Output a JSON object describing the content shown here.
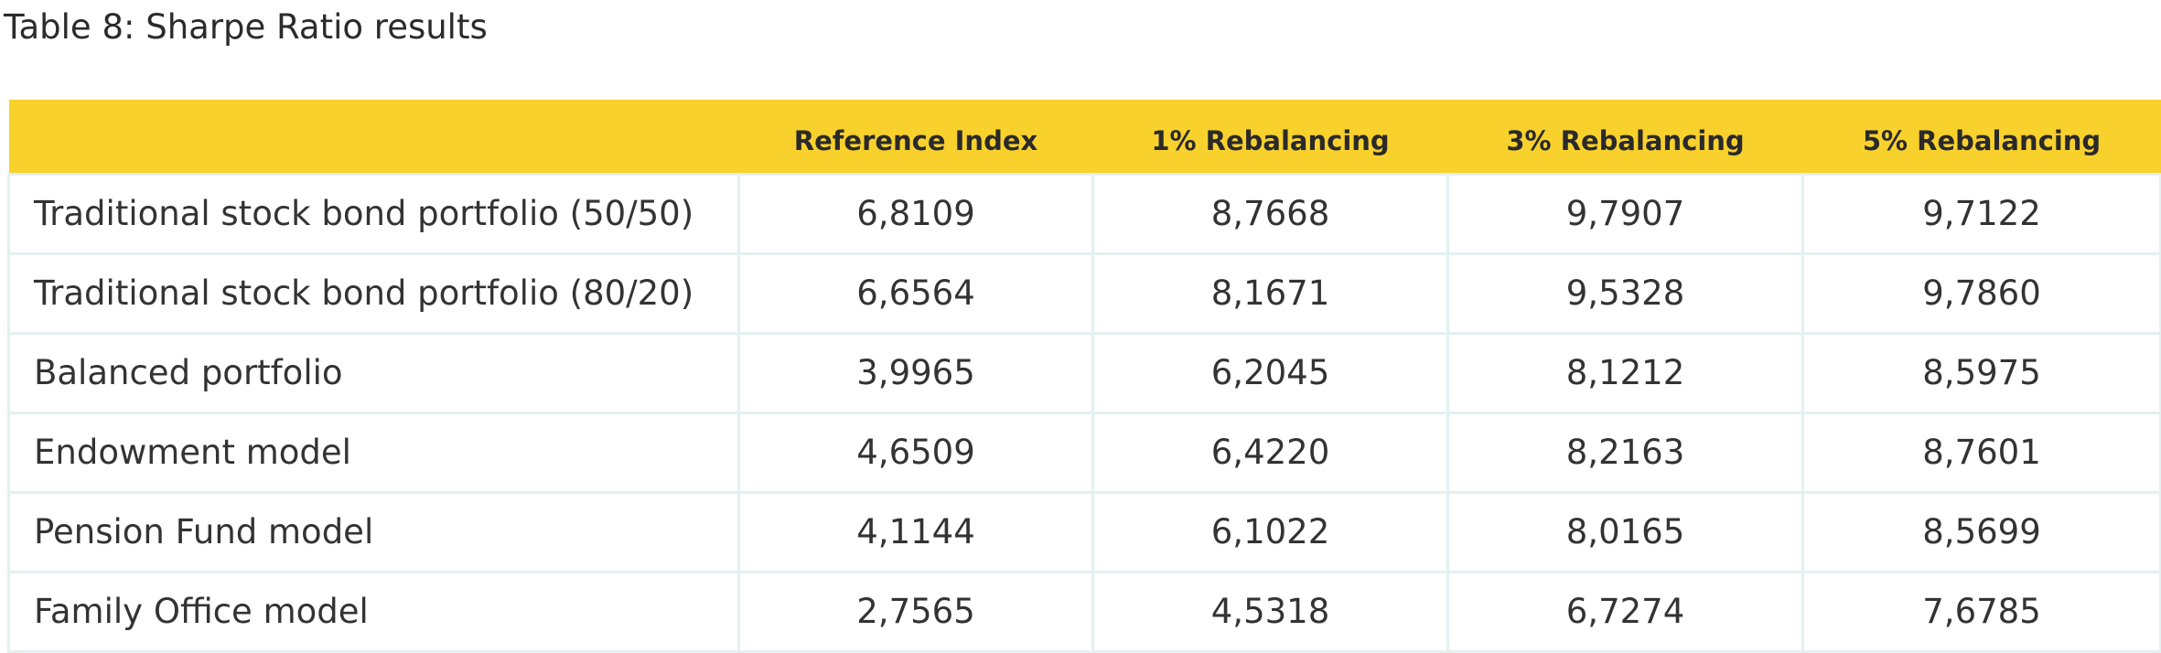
{
  "caption": "Table 8: Sharpe Ratio results",
  "table": {
    "headers": [
      "",
      "Reference Index",
      "1% Rebalancing",
      "3% Rebalancing",
      "5% Rebalancing"
    ],
    "rows": [
      {
        "label": "Traditional stock bond portfolio (50/50)",
        "values": [
          "6,8109",
          "8,7668",
          "9,7907",
          "9,7122"
        ]
      },
      {
        "label": "Traditional stock bond portfolio (80/20)",
        "values": [
          "6,6564",
          "8,1671",
          "9,5328",
          "9,7860"
        ]
      },
      {
        "label": "Balanced portfolio",
        "values": [
          "3,9965",
          "6,2045",
          "8,1212",
          "8,5975"
        ]
      },
      {
        "label": "Endowment model",
        "values": [
          "4,6509",
          "6,4220",
          "8,2163",
          "8,7601"
        ]
      },
      {
        "label": "Pension Fund model",
        "values": [
          "4,1144",
          "6,1022",
          "8,0165",
          "8,5699"
        ]
      },
      {
        "label": "Family Office model",
        "values": [
          "2,7565",
          "4,5318",
          "6,7274",
          "7,6785"
        ]
      }
    ]
  },
  "colors": {
    "header_background": "#f9d12d",
    "grid_lines": "#e3f1f0",
    "text": "#333333"
  }
}
